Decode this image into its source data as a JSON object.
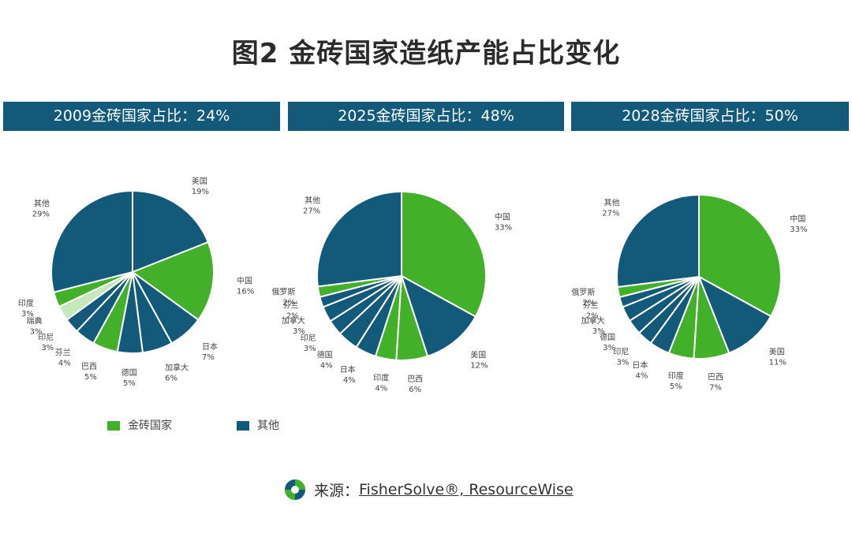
{
  "title": "图2  金砖国家造纸产能占比变化",
  "colors": {
    "brics": "#43b02a",
    "others": "#135a7a",
    "sweden": "#c5e8bc",
    "header": "#135a7a"
  },
  "chart_data": [
    {
      "type": "pie",
      "title": "2009金砖国家占比：24%",
      "slices": [
        {
          "name": "美国",
          "value": 19,
          "label": "19%",
          "group": "others"
        },
        {
          "name": "中国",
          "value": 16,
          "label": "16%",
          "group": "brics"
        },
        {
          "name": "日本",
          "value": 7,
          "label": "7%",
          "group": "others"
        },
        {
          "name": "加拿大",
          "value": 6,
          "label": "6%",
          "group": "others"
        },
        {
          "name": "德国",
          "value": 5,
          "label": "5%",
          "group": "others"
        },
        {
          "name": "巴西",
          "value": 5,
          "label": "5%",
          "group": "brics"
        },
        {
          "name": "芬兰",
          "value": 4,
          "label": "4%",
          "group": "others"
        },
        {
          "name": "印尼",
          "value": 3,
          "label": "3%",
          "group": "others"
        },
        {
          "name": "瑞典",
          "value": 3,
          "label": "3%",
          "group": "sweden"
        },
        {
          "name": "印度",
          "value": 3,
          "label": "3%",
          "group": "brics"
        },
        {
          "name": "其他",
          "value": 29,
          "label": "29%",
          "group": "others"
        }
      ]
    },
    {
      "type": "pie",
      "title": "2025金砖国家占比：48%",
      "slices": [
        {
          "name": "中国",
          "value": 33,
          "label": "33%",
          "group": "brics"
        },
        {
          "name": "美国",
          "value": 12,
          "label": "12%",
          "group": "others"
        },
        {
          "name": "巴西",
          "value": 6,
          "label": "6%",
          "group": "brics"
        },
        {
          "name": "印度",
          "value": 4,
          "label": "4%",
          "group": "brics"
        },
        {
          "name": "日本",
          "value": 4,
          "label": "4%",
          "group": "others"
        },
        {
          "name": "德国",
          "value": 4,
          "label": "4%",
          "group": "others"
        },
        {
          "name": "印尼",
          "value": 3,
          "label": "3%",
          "group": "others"
        },
        {
          "name": "加拿大",
          "value": 3,
          "label": "3%",
          "group": "others"
        },
        {
          "name": "芬兰",
          "value": 2,
          "label": "2%",
          "group": "others"
        },
        {
          "name": "俄罗斯",
          "value": 2,
          "label": "2%",
          "group": "brics"
        },
        {
          "name": "其他",
          "value": 27,
          "label": "27%",
          "group": "others"
        }
      ]
    },
    {
      "type": "pie",
      "title": "2028金砖国家占比：50%",
      "slices": [
        {
          "name": "中国",
          "value": 33,
          "label": "33%",
          "group": "brics"
        },
        {
          "name": "美国",
          "value": 11,
          "label": "11%",
          "group": "others"
        },
        {
          "name": "巴西",
          "value": 7,
          "label": "7%",
          "group": "brics"
        },
        {
          "name": "印度",
          "value": 5,
          "label": "5%",
          "group": "brics"
        },
        {
          "name": "日本",
          "value": 4,
          "label": "4%",
          "group": "others"
        },
        {
          "name": "印尼",
          "value": 3,
          "label": "3%",
          "group": "others"
        },
        {
          "name": "德国",
          "value": 3,
          "label": "3%",
          "group": "others"
        },
        {
          "name": "加拿大",
          "value": 3,
          "label": "3%",
          "group": "others"
        },
        {
          "name": "芬兰",
          "value": 2,
          "label": "2%",
          "group": "others"
        },
        {
          "name": "俄罗斯",
          "value": 2,
          "label": "2%",
          "group": "brics"
        },
        {
          "name": "其他",
          "value": 27,
          "label": "27%",
          "group": "others"
        }
      ]
    }
  ],
  "legend": [
    {
      "label": "金砖国家",
      "group": "brics"
    },
    {
      "label": "其他",
      "group": "others"
    }
  ],
  "source": {
    "prefix": "来源：",
    "text": "FisherSolve®, ResourceWise"
  }
}
